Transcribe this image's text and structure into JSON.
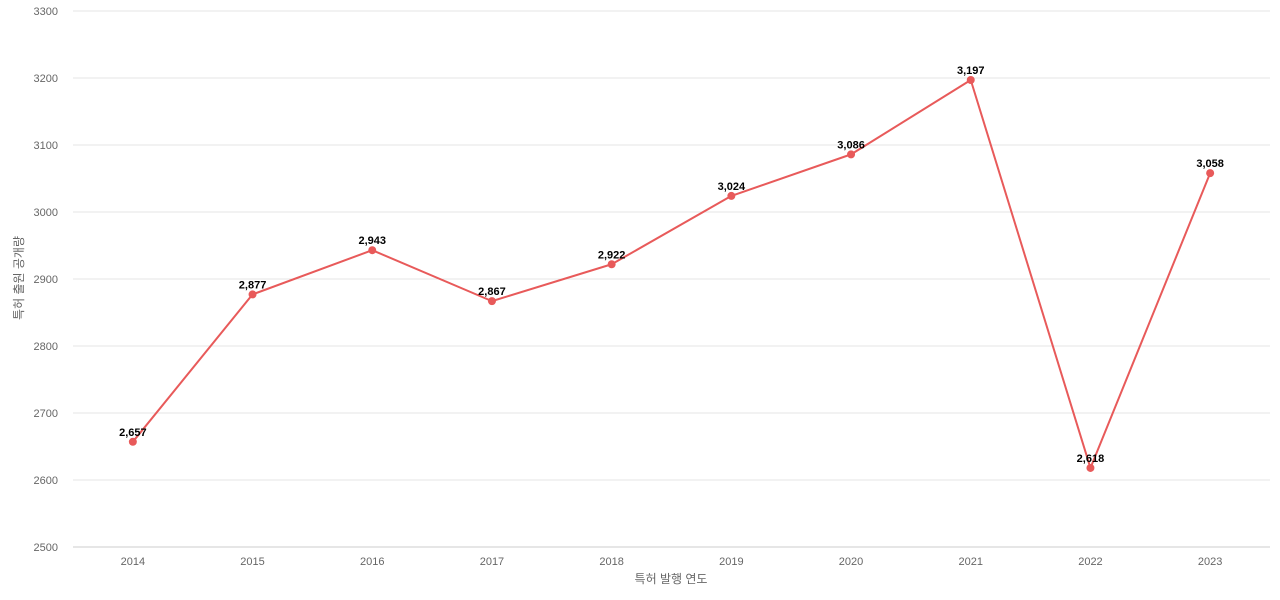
{
  "chart_data": {
    "type": "line",
    "xlabel": "특허 발행 연도",
    "ylabel": "특허 출원 공개량",
    "categories": [
      "2014",
      "2015",
      "2016",
      "2017",
      "2018",
      "2019",
      "2020",
      "2021",
      "2022",
      "2023"
    ],
    "series": [
      {
        "values": [
          2657,
          2877,
          2943,
          2867,
          2922,
          3024,
          3086,
          3197,
          2618,
          3058
        ],
        "data_labels": [
          "2,657",
          "2,877",
          "2,943",
          "2,867",
          "2,922",
          "3,024",
          "3,086",
          "3,197",
          "2,618",
          "3,058"
        ],
        "color": "#e85a5a"
      }
    ],
    "ylim": [
      2500,
      3300
    ],
    "yticks": [
      "2500",
      "2600",
      "2700",
      "2800",
      "2900",
      "3000",
      "3100",
      "3200",
      "3300"
    ],
    "grid": true,
    "legend": "none"
  }
}
